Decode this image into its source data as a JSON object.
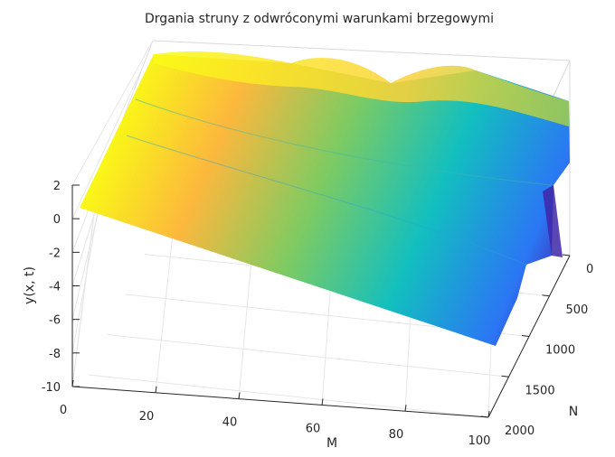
{
  "chart_data": {
    "type": "surface",
    "title": "Drgania struny z odwróconymi warunkami brzegowymi",
    "xlabel": "M",
    "ylabel": "N",
    "zlabel": "y(x, t)",
    "xlim": [
      0,
      100
    ],
    "ylim": [
      0,
      2000
    ],
    "zlim": [
      -10,
      2
    ],
    "x_ticks": [
      "0",
      "20",
      "40",
      "60",
      "80",
      "100"
    ],
    "y_ticks": [
      "0",
      "500",
      "1000",
      "1500",
      "2000"
    ],
    "z_ticks": [
      "2",
      "0",
      "-2",
      "-4",
      "-6",
      "-8",
      "-10"
    ],
    "grid": true,
    "colormap": "parula",
    "colormap_stops": [
      "#3e26a8",
      "#2b76f5",
      "#12bfbf",
      "#7dcb62",
      "#fcb83d",
      "#f9fb15"
    ],
    "surface_z_approx": [
      {
        "m": 0,
        "z_from_n0_to_n2000": [
          1.8,
          1.5,
          1.2,
          0.9,
          0.6,
          0.3,
          0.0
        ]
      },
      {
        "m": 50,
        "z_from_n0_to_n2000": [
          1.5,
          0.0,
          -1.5,
          -2.0,
          -2.5,
          -3.0,
          -3.5
        ]
      },
      {
        "m": 100,
        "z_from_n0_to_n2000": [
          1.5,
          -1.0,
          -3.0,
          -4.5,
          -5.5,
          -6.5,
          -7.5
        ]
      }
    ]
  }
}
